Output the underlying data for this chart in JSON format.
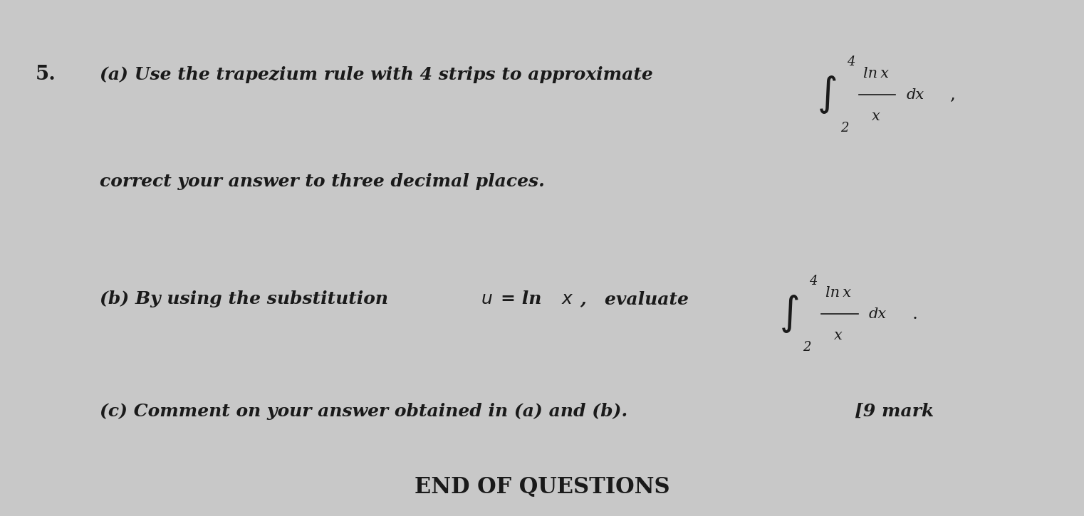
{
  "background_color": "#d8d8d8",
  "page_bg": "#e8e8e8",
  "question_num": "5.",
  "part_a_prefix": "(a) Use the trapezium rule with 4 strips to approximate",
  "part_a_integral_upper": "4",
  "part_a_integral_lower": "2",
  "part_a_integral_num": "ln x",
  "part_a_integral_den": "x",
  "part_a_integral_dx": "dx",
  "part_a_suffix": ",",
  "part_a_line2": "correct your answer to three decimal places.",
  "part_b_prefix": "(b) By using the substitution",
  "part_b_u": "u",
  "part_b_eq": " = ln x ,",
  "part_b_evaluate": "  evaluate",
  "part_b_integral_upper": "4",
  "part_b_integral_lower": "2",
  "part_b_integral_num": "ln x",
  "part_b_integral_den": "x",
  "part_b_integral_dx": "dx",
  "part_b_suffix": ".",
  "part_c": "(c) Comment on your answer obtained in (a) and (b).",
  "part_c_marks": "[9 mark",
  "footer": "END OF QUESTIONS",
  "text_color": "#1a1a1a",
  "font_size_main": 18,
  "font_size_small": 14,
  "font_size_footer": 20
}
